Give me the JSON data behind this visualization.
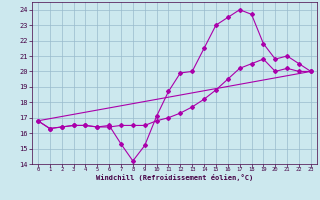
{
  "xlabel": "Windchill (Refroidissement éolien,°C)",
  "bg_color": "#cce8ee",
  "line_color": "#aa00aa",
  "grid_color": "#99bbcc",
  "xlim": [
    -0.5,
    23.5
  ],
  "ylim": [
    14,
    24.5
  ],
  "xticks": [
    0,
    1,
    2,
    3,
    4,
    5,
    6,
    7,
    8,
    9,
    10,
    11,
    12,
    13,
    14,
    15,
    16,
    17,
    18,
    19,
    20,
    21,
    22,
    23
  ],
  "yticks": [
    14,
    15,
    16,
    17,
    18,
    19,
    20,
    21,
    22,
    23,
    24
  ],
  "line1_x": [
    0,
    1,
    2,
    3,
    4,
    5,
    6,
    7,
    8,
    9,
    10,
    11,
    12,
    13,
    14,
    15,
    16,
    17,
    18,
    19,
    20,
    21,
    22,
    23
  ],
  "line1_y": [
    16.8,
    16.3,
    16.4,
    16.5,
    16.5,
    16.4,
    16.5,
    15.3,
    14.2,
    15.2,
    17.1,
    18.7,
    19.9,
    20.0,
    21.5,
    23.0,
    23.5,
    24.0,
    23.7,
    21.8,
    20.8,
    21.0,
    20.5,
    20.0
  ],
  "line2_x": [
    0,
    1,
    2,
    3,
    4,
    5,
    6,
    7,
    8,
    9,
    10,
    11,
    12,
    13,
    14,
    15,
    16,
    17,
    18,
    19,
    20,
    21,
    22,
    23
  ],
  "line2_y": [
    16.8,
    16.3,
    16.4,
    16.5,
    16.5,
    16.4,
    16.4,
    16.5,
    16.5,
    16.5,
    16.8,
    17.0,
    17.3,
    17.7,
    18.2,
    18.8,
    19.5,
    20.2,
    20.5,
    20.8,
    20.0,
    20.2,
    20.0,
    20.0
  ],
  "line3_x": [
    0,
    23
  ],
  "line3_y": [
    16.8,
    20.0
  ]
}
